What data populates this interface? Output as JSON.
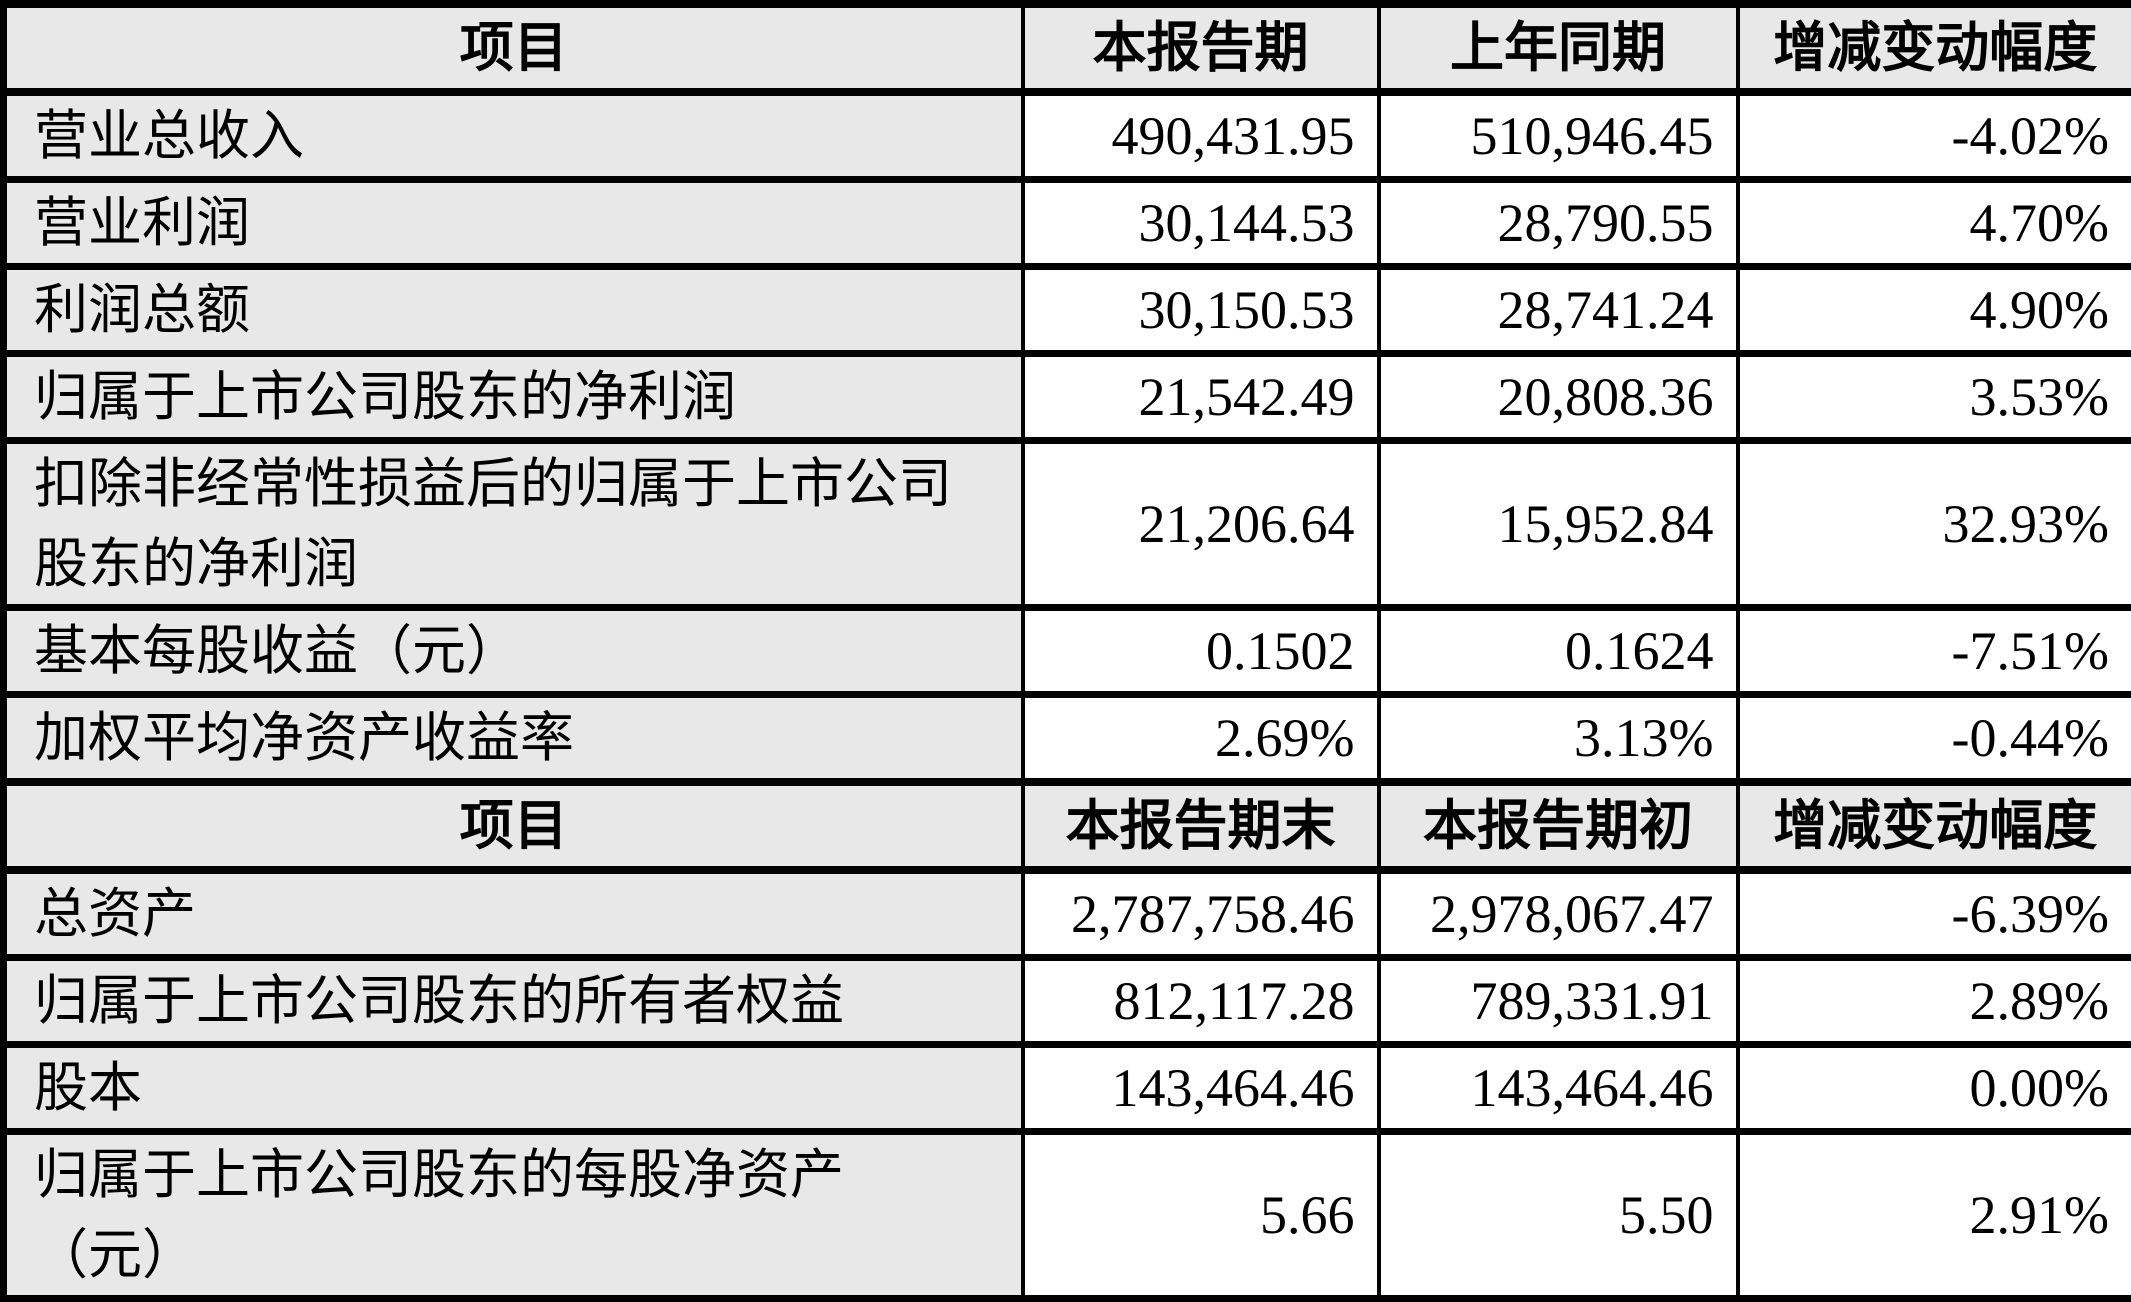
{
  "table": {
    "title": "financial-highlights-table",
    "colors": {
      "header_bg": "#e8e8e8",
      "label_bg": "#e8e8e8",
      "value_bg": "#ffffff",
      "border": "#000000",
      "text": "#000000"
    },
    "sections": [
      {
        "header": [
          "项目",
          "本报告期",
          "上年同期",
          "增减变动幅度"
        ],
        "rows": [
          [
            "营业总收入",
            "490,431.95",
            "510,946.45",
            "-4.02%"
          ],
          [
            "营业利润",
            "30,144.53",
            "28,790.55",
            "4.70%"
          ],
          [
            "利润总额",
            "30,150.53",
            "28,741.24",
            "4.90%"
          ],
          [
            "归属于上市公司股东的净利润",
            "21,542.49",
            "20,808.36",
            "3.53%"
          ],
          [
            "扣除非经常性损益后的归属于上市公司股东的净利润",
            "21,206.64",
            "15,952.84",
            "32.93%"
          ],
          [
            "基本每股收益（元）",
            "0.1502",
            "0.1624",
            "-7.51%"
          ],
          [
            "加权平均净资产收益率",
            "2.69%",
            "3.13%",
            "-0.44%"
          ]
        ]
      },
      {
        "header": [
          "项目",
          "本报告期末",
          "本报告期初",
          "增减变动幅度"
        ],
        "rows": [
          [
            "总资产",
            "2,787,758.46",
            "2,978,067.47",
            "-6.39%"
          ],
          [
            "归属于上市公司股东的所有者权益",
            "812,117.28",
            "789,331.91",
            "2.89%"
          ],
          [
            "股本",
            "143,464.46",
            "143,464.46",
            "0.00%"
          ],
          [
            "归属于上市公司股东的每股净资产（元）",
            "5.66",
            "5.50",
            "2.91%"
          ]
        ]
      }
    ]
  }
}
